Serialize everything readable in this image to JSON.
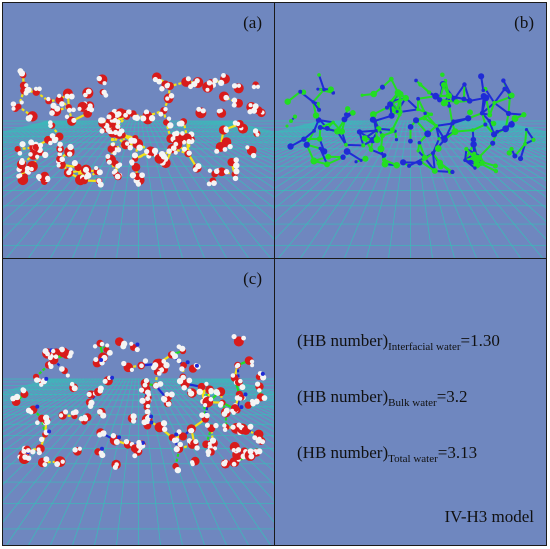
{
  "panels": {
    "a": {
      "label": "(a)"
    },
    "b": {
      "label": "(b)"
    },
    "c": {
      "label": "(c)"
    }
  },
  "hb_lines": [
    {
      "prefix": "(HB number)",
      "sub": "Interfacial water",
      "value": "=1.30"
    },
    {
      "prefix": "(HB number)",
      "sub": "Bulk water",
      "value": "=3.2"
    },
    {
      "prefix": "(HB number)",
      "sub": "Total water",
      "value": "=3.13"
    }
  ],
  "model_label": "IV-H3 model",
  "colors": {
    "background": "#6f87bf",
    "graphene": "#2fc6b8",
    "oxygen": "#d81b1b",
    "hydrogen": "#f4f4f4",
    "hbond": "#f2e21a",
    "bond_green": "#22dd22",
    "bond_blue": "#1f2bd6"
  }
}
